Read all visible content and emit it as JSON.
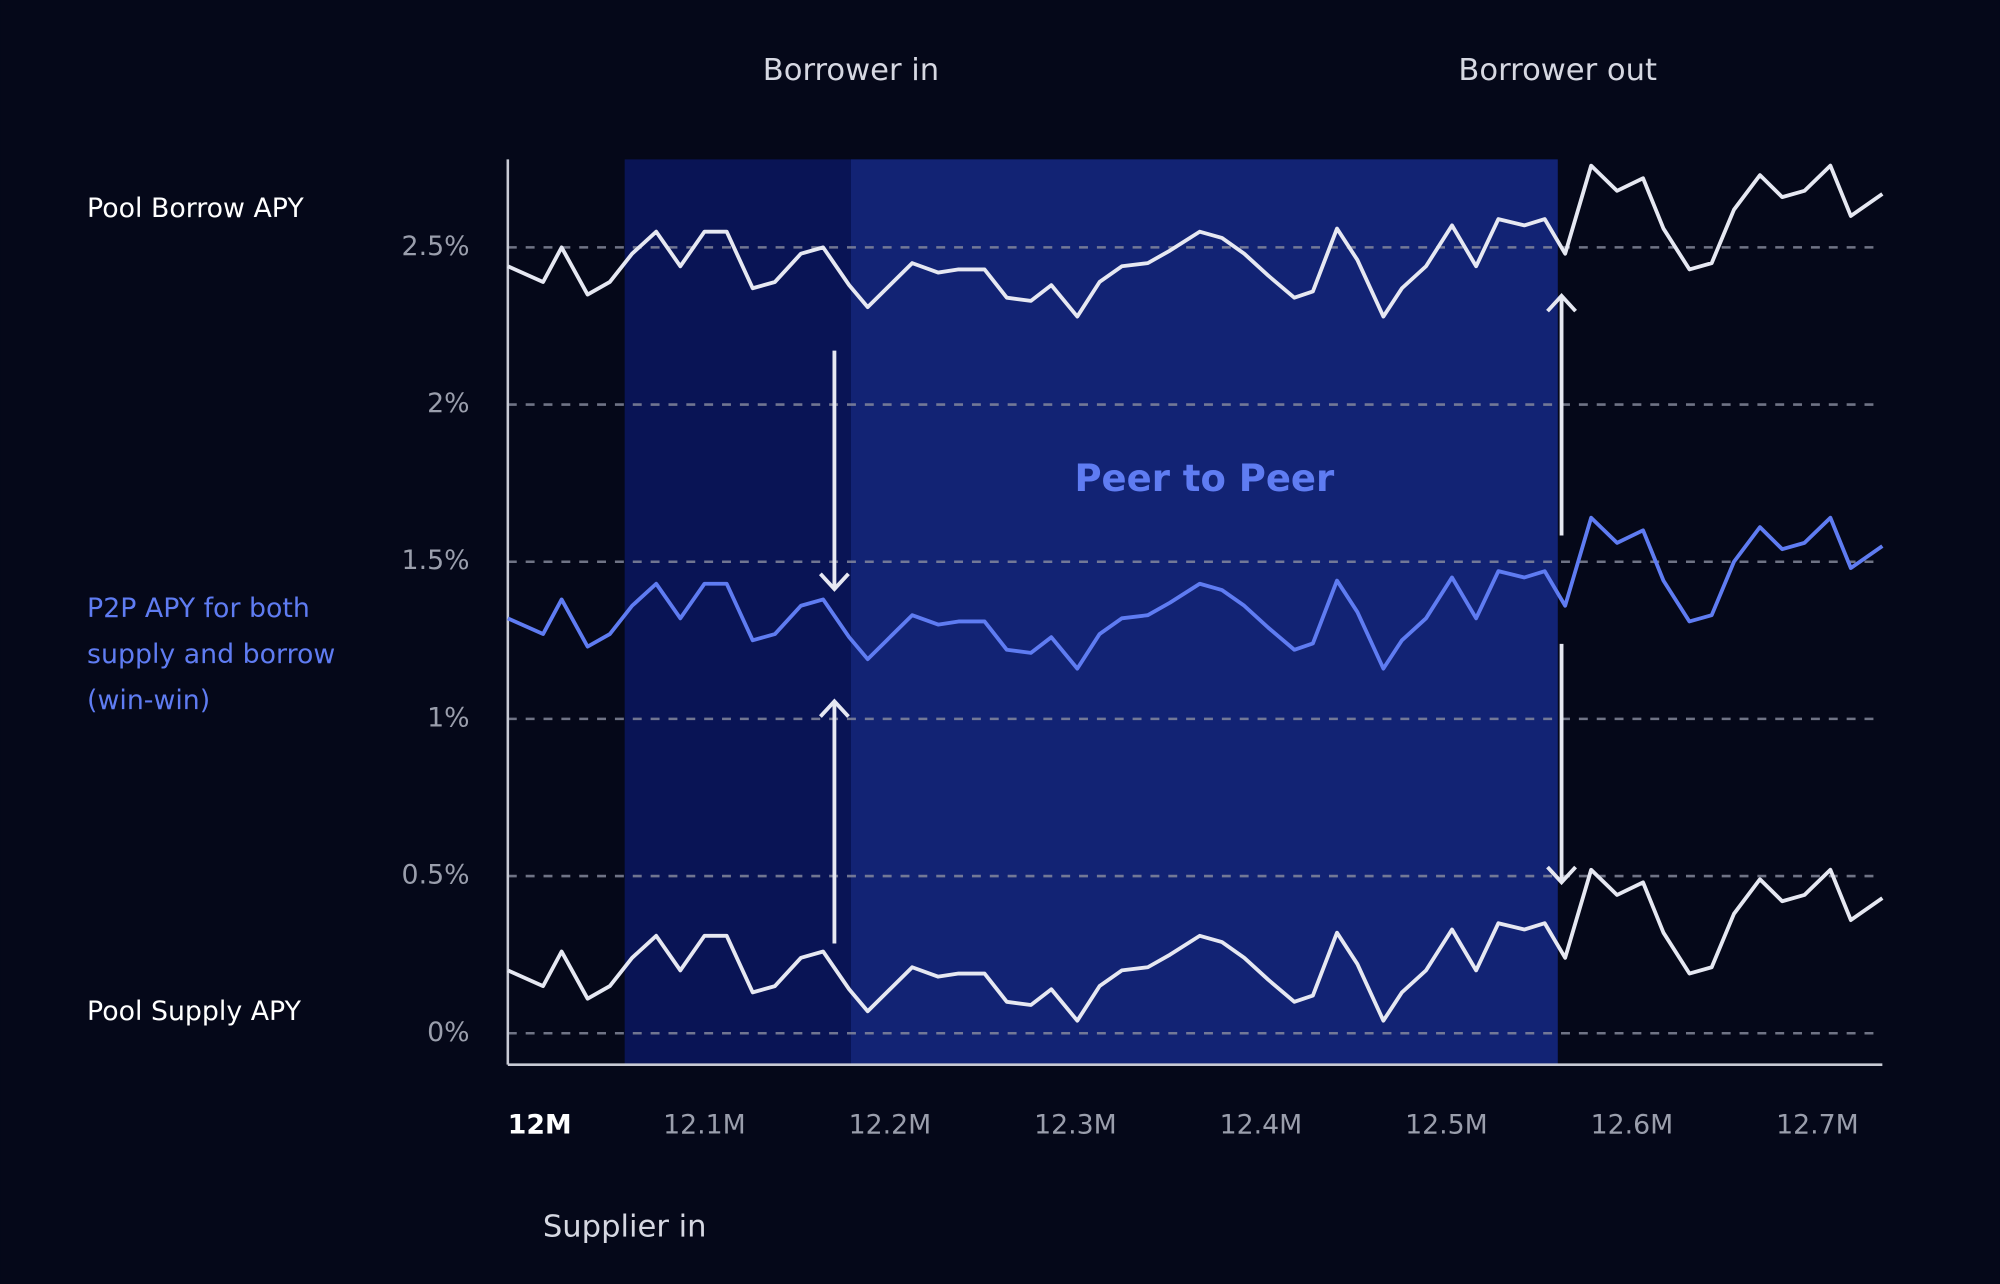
{
  "chart_data": {
    "type": "line",
    "x": [
      11.994,
      12.013,
      12.023,
      12.037,
      12.049,
      12.061,
      12.074,
      12.087,
      12.1,
      12.112,
      12.126,
      12.138,
      12.152,
      12.164,
      12.178,
      12.188,
      12.2,
      12.212,
      12.226,
      12.237,
      12.251,
      12.263,
      12.276,
      12.287,
      12.301,
      12.313,
      12.325,
      12.339,
      12.351,
      12.367,
      12.379,
      12.391,
      12.404,
      12.418,
      12.428,
      12.441,
      12.452,
      12.466,
      12.476,
      12.489,
      12.503,
      12.516,
      12.528,
      12.542,
      12.553,
      12.564,
      12.578,
      12.592,
      12.606,
      12.617,
      12.631,
      12.643,
      12.655,
      12.669,
      12.681,
      12.693,
      12.707,
      12.718,
      12.735
    ],
    "series": [
      {
        "name": "Pool Borrow APY",
        "color": "#e6e8f2",
        "values": [
          2.44,
          2.39,
          2.5,
          2.35,
          2.39,
          2.48,
          2.55,
          2.44,
          2.55,
          2.55,
          2.37,
          2.39,
          2.48,
          2.5,
          2.38,
          2.31,
          2.38,
          2.45,
          2.42,
          2.43,
          2.43,
          2.34,
          2.33,
          2.38,
          2.28,
          2.39,
          2.44,
          2.45,
          2.49,
          2.55,
          2.53,
          2.48,
          2.41,
          2.34,
          2.36,
          2.56,
          2.46,
          2.28,
          2.37,
          2.44,
          2.57,
          2.44,
          2.59,
          2.57,
          2.59,
          2.48,
          2.76,
          2.68,
          2.72,
          2.56,
          2.43,
          2.45,
          2.62,
          2.73,
          2.66,
          2.68,
          2.76,
          2.6,
          2.67
        ]
      },
      {
        "name": "P2P APY for both supply and borrow (win-win)",
        "color": "#5f7cf2",
        "values": [
          1.32,
          1.27,
          1.38,
          1.23,
          1.27,
          1.36,
          1.43,
          1.32,
          1.43,
          1.43,
          1.25,
          1.27,
          1.36,
          1.38,
          1.26,
          1.19,
          1.26,
          1.33,
          1.3,
          1.31,
          1.31,
          1.22,
          1.21,
          1.26,
          1.16,
          1.27,
          1.32,
          1.33,
          1.37,
          1.43,
          1.41,
          1.36,
          1.29,
          1.22,
          1.24,
          1.44,
          1.34,
          1.16,
          1.25,
          1.32,
          1.45,
          1.32,
          1.47,
          1.45,
          1.47,
          1.36,
          1.64,
          1.56,
          1.6,
          1.44,
          1.31,
          1.33,
          1.5,
          1.61,
          1.54,
          1.56,
          1.64,
          1.48,
          1.55
        ]
      },
      {
        "name": "Pool Supply APY",
        "color": "#e6e8f2",
        "values": [
          0.2,
          0.15,
          0.26,
          0.11,
          0.15,
          0.24,
          0.31,
          0.2,
          0.31,
          0.31,
          0.13,
          0.15,
          0.24,
          0.26,
          0.14,
          0.07,
          0.14,
          0.21,
          0.18,
          0.19,
          0.19,
          0.1,
          0.09,
          0.14,
          0.04,
          0.15,
          0.2,
          0.21,
          0.25,
          0.31,
          0.29,
          0.24,
          0.17,
          0.1,
          0.12,
          0.32,
          0.22,
          0.04,
          0.13,
          0.2,
          0.33,
          0.2,
          0.35,
          0.33,
          0.35,
          0.24,
          0.52,
          0.44,
          0.48,
          0.32,
          0.19,
          0.21,
          0.38,
          0.49,
          0.42,
          0.44,
          0.52,
          0.36,
          0.43
        ]
      }
    ],
    "xlim": [
      11.994,
      12.735
    ],
    "ylim": [
      -0.1,
      2.78
    ],
    "xticks": [
      {
        "value": 12.0,
        "label": "12M"
      },
      {
        "value": 12.1,
        "label": "12.1M"
      },
      {
        "value": 12.2,
        "label": "12.2M"
      },
      {
        "value": 12.3,
        "label": "12.3M"
      },
      {
        "value": 12.4,
        "label": "12.4M"
      },
      {
        "value": 12.5,
        "label": "12.5M"
      },
      {
        "value": 12.6,
        "label": "12.6M"
      },
      {
        "value": 12.7,
        "label": "12.7M"
      }
    ],
    "yticks": [
      {
        "value": 0,
        "label": "0%"
      },
      {
        "value": 0.5,
        "label": "0.5%"
      },
      {
        "value": 1,
        "label": "1%"
      },
      {
        "value": 1.5,
        "label": "1.5%"
      },
      {
        "value": 2,
        "label": "2%"
      },
      {
        "value": 2.5,
        "label": "2.5%"
      }
    ],
    "grid": true,
    "events": [
      {
        "label": "Supplier in",
        "x": 12.057
      },
      {
        "label": "Borrower in",
        "x": 12.179
      },
      {
        "label": "Borrower out",
        "x": 12.56
      }
    ],
    "shaded_region": {
      "label": "Peer to Peer",
      "start": 12.179,
      "end": 12.56
    }
  }
}
